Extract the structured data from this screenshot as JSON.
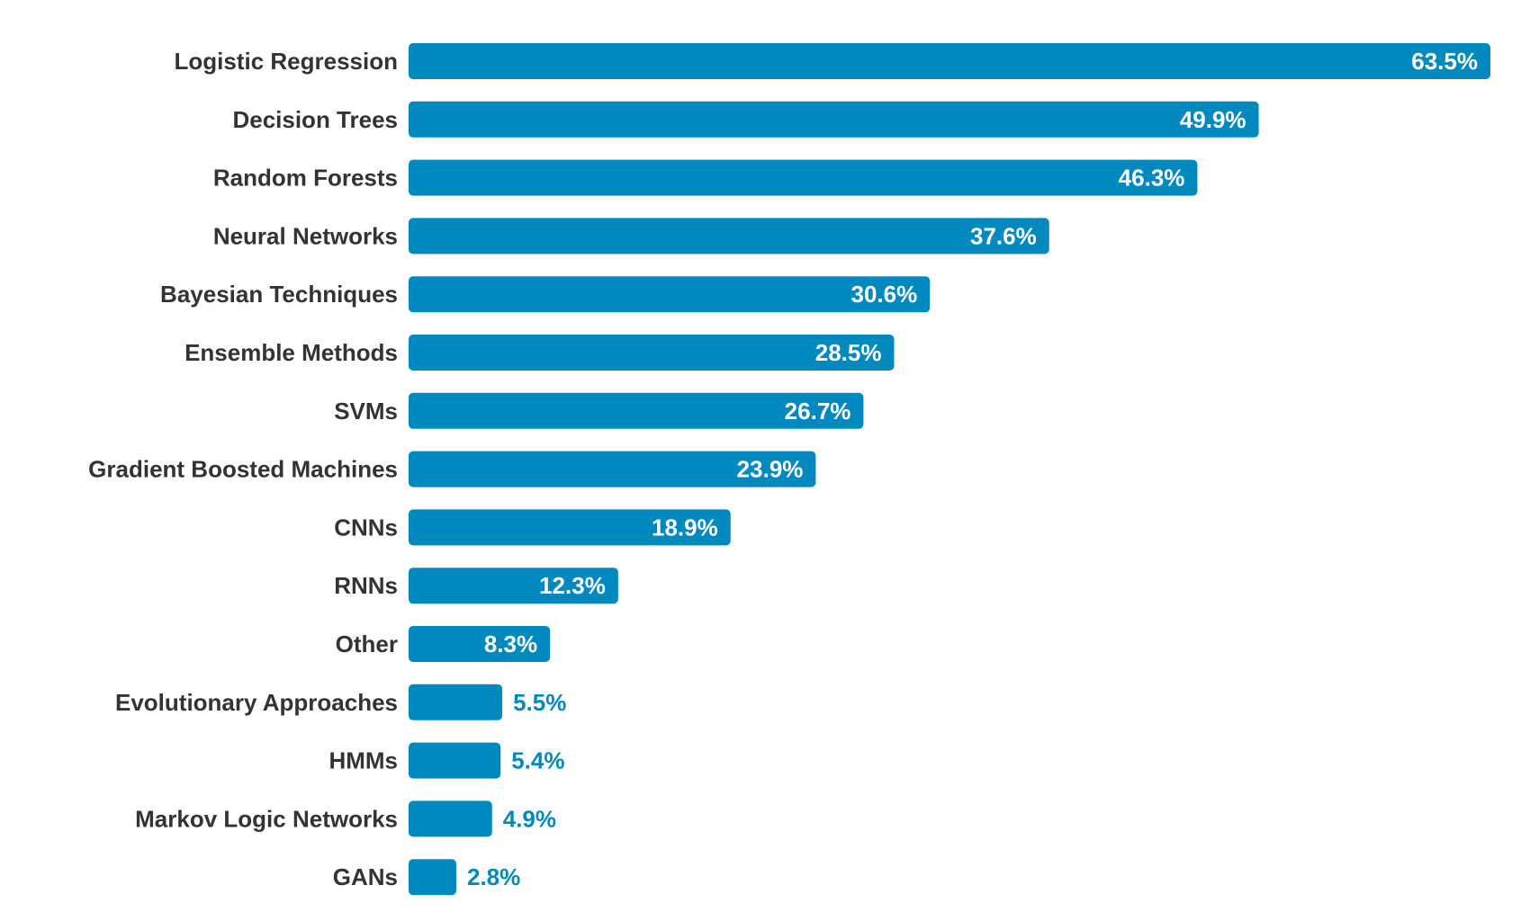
{
  "chart_data": {
    "type": "bar",
    "orientation": "horizontal",
    "categories": [
      "Logistic Regression",
      "Decision Trees",
      "Random Forests",
      "Neural Networks",
      "Bayesian Techniques",
      "Ensemble Methods",
      "SVMs",
      "Gradient Boosted Machines",
      "CNNs",
      "RNNs",
      "Other",
      "Evolutionary Approaches",
      "HMMs",
      "Markov Logic Networks",
      "GANs"
    ],
    "values": [
      63.5,
      49.9,
      46.3,
      37.6,
      30.6,
      28.5,
      26.7,
      23.9,
      18.9,
      12.3,
      8.3,
      5.5,
      5.4,
      4.9,
      2.8
    ],
    "value_labels": [
      "63.5%",
      "49.9%",
      "46.3%",
      "37.6%",
      "30.6%",
      "28.5%",
      "26.7%",
      "23.9%",
      "18.9%",
      "12.3%",
      "8.3%",
      "5.5%",
      "5.4%",
      "4.9%",
      "2.8%"
    ],
    "xlim": [
      0,
      63.5
    ],
    "grid": false,
    "legend": "none",
    "bar_color": "#0089bf",
    "label_color": "#333333",
    "inside_label_color": "#ffffff"
  }
}
